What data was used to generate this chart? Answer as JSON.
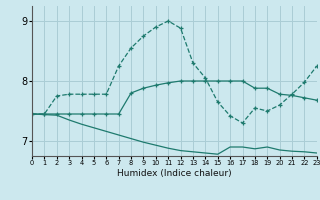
{
  "xlabel": "Humidex (Indice chaleur)",
  "bg_color": "#cce8ee",
  "grid_color": "#aacdd5",
  "line_color": "#1e7a6e",
  "line1_x": [
    0,
    1,
    2,
    3,
    4,
    5,
    6,
    7,
    8,
    9,
    10,
    11,
    12,
    13,
    14,
    15,
    16,
    17,
    18,
    19,
    20,
    21,
    22,
    23
  ],
  "line1_y": [
    7.45,
    7.45,
    7.75,
    7.78,
    7.78,
    7.78,
    7.78,
    8.25,
    8.55,
    8.75,
    8.9,
    9.0,
    8.88,
    8.3,
    8.05,
    7.65,
    7.42,
    7.3,
    7.55,
    7.5,
    7.6,
    7.78,
    7.98,
    8.25
  ],
  "line2_x": [
    0,
    1,
    2,
    3,
    4,
    5,
    6,
    7,
    8,
    9,
    10,
    11,
    12,
    13,
    14,
    15,
    16,
    17,
    18,
    19,
    20,
    21,
    22,
    23
  ],
  "line2_y": [
    7.45,
    7.45,
    7.45,
    7.45,
    7.45,
    7.45,
    7.45,
    7.45,
    7.8,
    7.88,
    7.93,
    7.97,
    8.0,
    8.0,
    8.0,
    8.0,
    8.0,
    8.0,
    7.88,
    7.88,
    7.78,
    7.76,
    7.72,
    7.68
  ],
  "line3_x": [
    0,
    1,
    2,
    3,
    4,
    5,
    6,
    7,
    8,
    9,
    10,
    11,
    12,
    13,
    14,
    15,
    16,
    17,
    18,
    19,
    20,
    21,
    22,
    23
  ],
  "line3_y": [
    7.45,
    7.44,
    7.43,
    7.35,
    7.28,
    7.22,
    7.16,
    7.1,
    7.04,
    6.98,
    6.93,
    6.88,
    6.84,
    6.82,
    6.8,
    6.78,
    6.9,
    6.9,
    6.87,
    6.9,
    6.85,
    6.83,
    6.82,
    6.8
  ],
  "xlim": [
    0,
    23
  ],
  "ylim": [
    6.75,
    9.25
  ],
  "yticks": [
    7,
    8,
    9
  ],
  "xticks": [
    0,
    1,
    2,
    3,
    4,
    5,
    6,
    7,
    8,
    9,
    10,
    11,
    12,
    13,
    14,
    15,
    16,
    17,
    18,
    19,
    20,
    21,
    22,
    23
  ]
}
